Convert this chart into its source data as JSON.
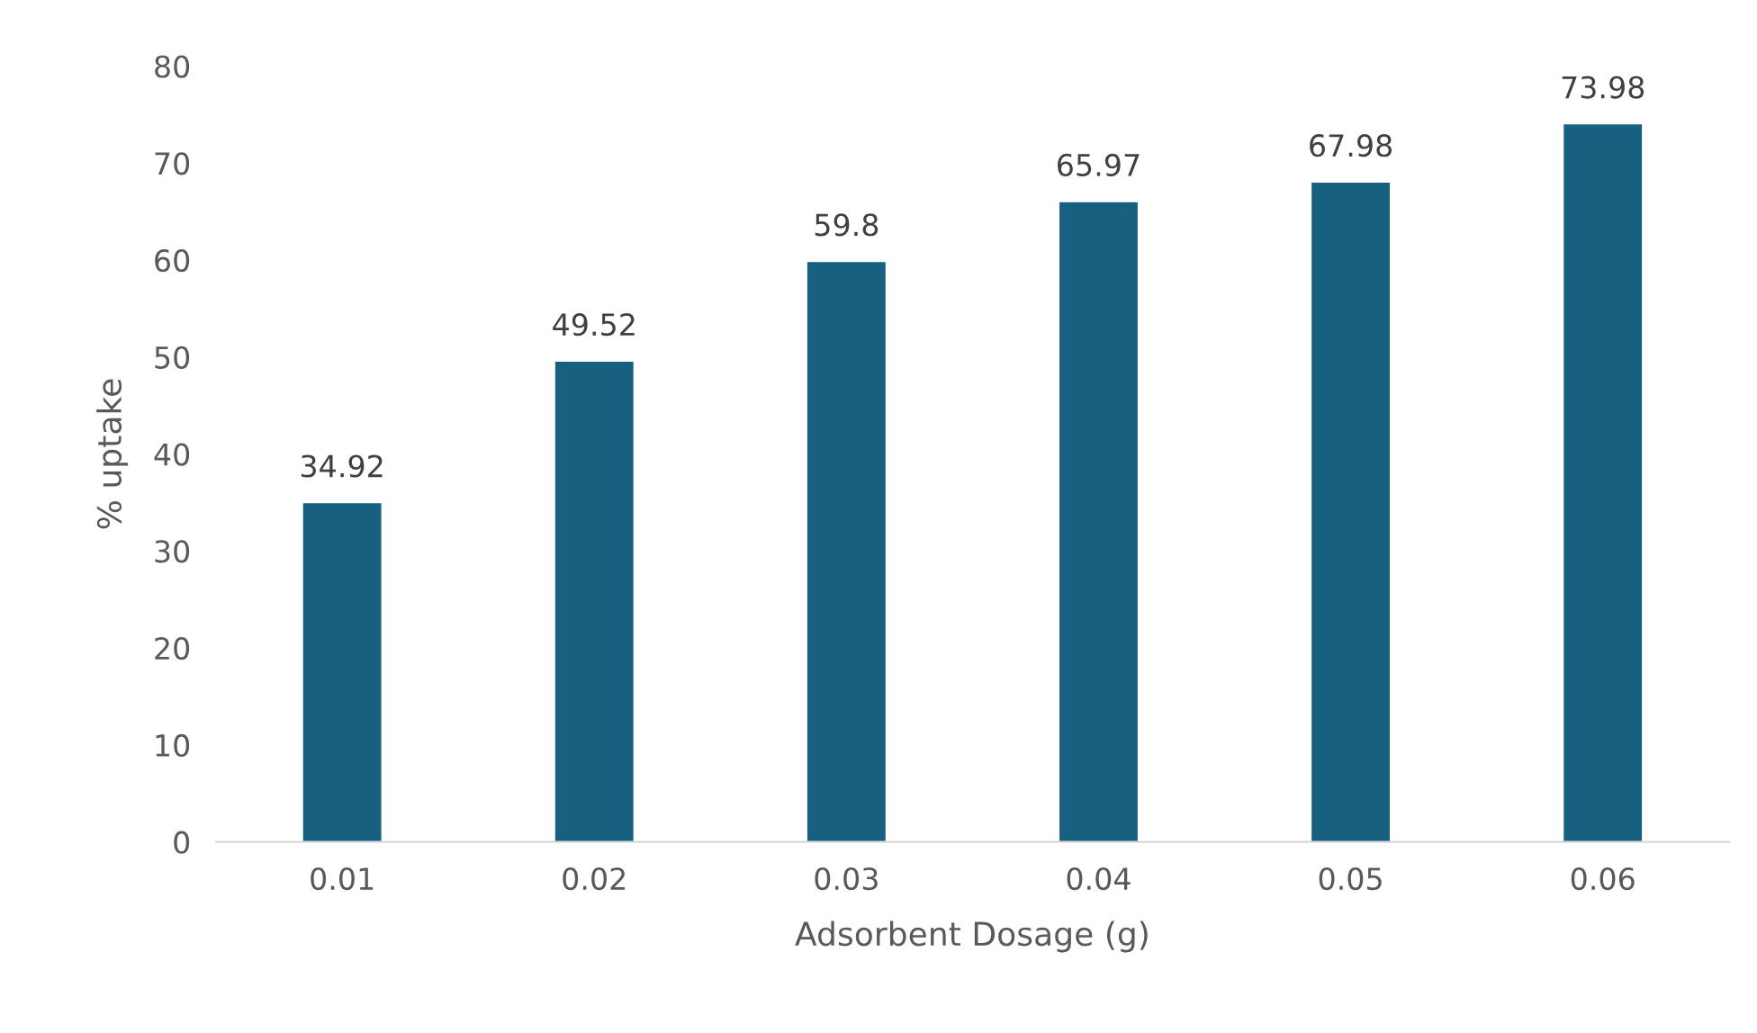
{
  "chart_data": {
    "type": "bar",
    "xlabel": "Adsorbent Dosage (g)",
    "ylabel": "% uptake",
    "categories": [
      "0.01",
      "0.02",
      "0.03",
      "0.04",
      "0.05",
      "0.06"
    ],
    "values": [
      34.92,
      49.52,
      59.8,
      65.97,
      67.98,
      73.98
    ],
    "color": "#17607f",
    "ylim": [
      0,
      80
    ],
    "yticks": [
      0,
      10,
      20,
      30,
      40,
      50,
      60,
      70,
      80
    ],
    "grid": false,
    "data_labels": true
  }
}
